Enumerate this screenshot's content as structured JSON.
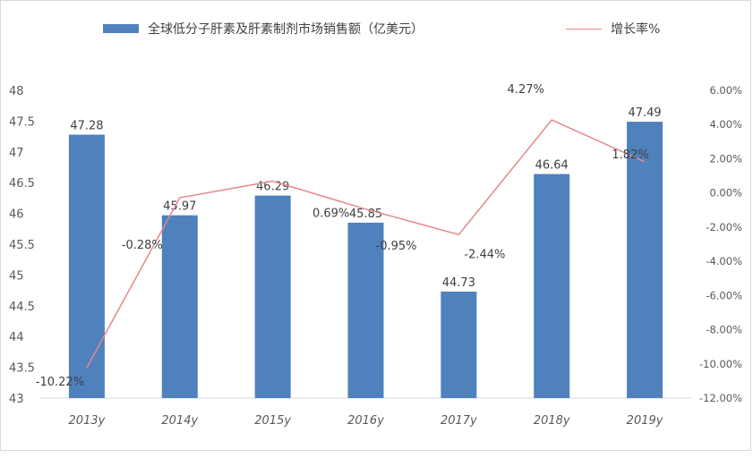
{
  "chart_data": {
    "type": "bar",
    "categories": [
      "2013y",
      "2014y",
      "2015y",
      "2016y",
      "2017y",
      "2018y",
      "2019y"
    ],
    "series": [
      {
        "name": "全球低分子肝素及肝素制剂市场销售额（亿美元）",
        "type": "bar",
        "axis": "left",
        "values": [
          47.28,
          45.97,
          46.29,
          45.85,
          44.73,
          46.64,
          47.49
        ],
        "labels": [
          "47.28",
          "45.97",
          "46.29",
          "45.85",
          "44.73",
          "46.64",
          "47.49"
        ],
        "color": "#4f81bd"
      },
      {
        "name": "增长率%",
        "type": "line",
        "axis": "right",
        "values": [
          -10.22,
          -0.28,
          0.69,
          -0.95,
          -2.44,
          4.27,
          1.82
        ],
        "labels": [
          "-10.22%",
          "-0.28%",
          "0.69%",
          "-0.95%",
          "-2.44%",
          "4.27%",
          "1.82%"
        ],
        "color": "#e5888a"
      }
    ],
    "y_left": {
      "min": 43,
      "max": 48,
      "ticks": [
        "43",
        "43.5",
        "44",
        "44.5",
        "45",
        "45.5",
        "46",
        "46.5",
        "47",
        "47.5",
        "48"
      ]
    },
    "y_right": {
      "min": -12,
      "max": 6,
      "ticks": [
        "-12.00%",
        "-10.00%",
        "-8.00%",
        "-6.00%",
        "-4.00%",
        "-2.00%",
        "0.00%",
        "2.00%",
        "4.00%",
        "6.00%"
      ]
    },
    "grid": false,
    "legend": "top"
  }
}
